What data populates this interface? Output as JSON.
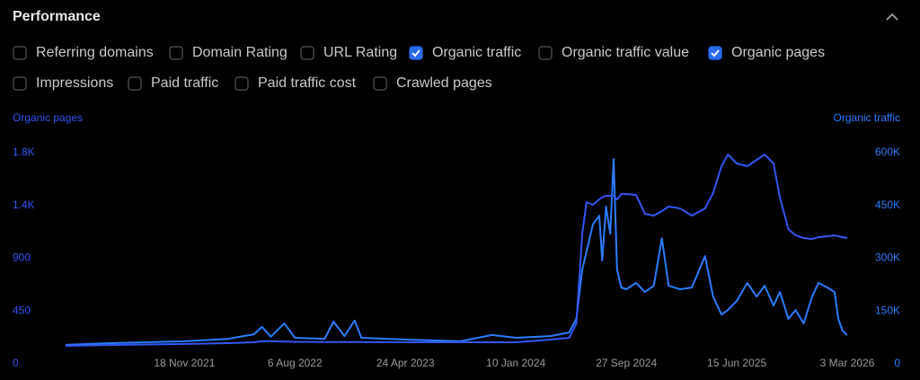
{
  "header": {
    "title": "Performance"
  },
  "filters": [
    {
      "label": "Referring domains",
      "checked": false
    },
    {
      "label": "Domain Rating",
      "checked": false
    },
    {
      "label": "URL Rating",
      "checked": false
    },
    {
      "label": "Organic traffic",
      "checked": true
    },
    {
      "label": "Organic traffic value",
      "checked": false
    },
    {
      "label": "Organic pages",
      "checked": true
    },
    {
      "label": "Impressions",
      "checked": false
    },
    {
      "label": "Paid traffic",
      "checked": false
    },
    {
      "label": "Paid traffic cost",
      "checked": false
    },
    {
      "label": "Crawled pages",
      "checked": false
    }
  ],
  "chart_data": {
    "type": "line",
    "ylabel": "Organic pages",
    "y2label": "Organic traffic",
    "x": [
      "2021-02-10",
      "2021-06-01",
      "2021-11-18",
      "2022-03-01",
      "2022-05-01",
      "2022-05-20",
      "2022-06-10",
      "2022-07-12",
      "2022-08-06",
      "2022-10-15",
      "2022-11-05",
      "2022-12-01",
      "2022-12-25",
      "2023-01-10",
      "2023-04-24",
      "2023-09-01",
      "2023-11-15",
      "2024-01-10",
      "2024-04-01",
      "2024-05-15",
      "2024-06-01",
      "2024-06-15",
      "2024-06-25",
      "2024-07-10",
      "2024-07-25",
      "2024-08-01",
      "2024-08-10",
      "2024-08-20",
      "2024-08-28",
      "2024-09-05",
      "2024-09-15",
      "2024-09-27",
      "2024-10-20",
      "2024-11-10",
      "2024-12-01",
      "2024-12-20",
      "2025-01-05",
      "2025-02-01",
      "2025-03-01",
      "2025-04-01",
      "2025-04-20",
      "2025-05-10",
      "2025-05-25",
      "2025-06-15",
      "2025-07-10",
      "2025-08-01",
      "2025-08-20",
      "2025-09-10",
      "2025-09-25",
      "2025-10-15",
      "2025-11-01",
      "2025-11-20",
      "2025-12-10",
      "2025-12-25",
      "2026-01-15",
      "2026-02-01",
      "2026-02-10",
      "2026-02-20",
      "2026-03-03"
    ],
    "series": [
      {
        "name": "Organic traffic",
        "color": "#2b7cff",
        "axis": "y2",
        "values": [
          54000,
          59000,
          64000,
          71000,
          84000,
          105000,
          77000,
          115000,
          74000,
          71000,
          120000,
          79000,
          123000,
          74000,
          69000,
          64000,
          82000,
          74000,
          79000,
          89000,
          128000,
          268000,
          319000,
          396000,
          421000,
          294000,
          447000,
          370000,
          582000,
          268000,
          217000,
          212000,
          230000,
          204000,
          222000,
          357000,
          222000,
          212000,
          217000,
          306000,
          191000,
          140000,
          153000,
          179000,
          230000,
          191000,
          222000,
          166000,
          204000,
          128000,
          153000,
          115000,
          191000,
          230000,
          217000,
          204000,
          128000,
          94000,
          82000
        ]
      },
      {
        "name": "Organic pages",
        "color": "#3355f2",
        "values": [
          153,
          161,
          169,
          176,
          184,
          192,
          192,
          190,
          188,
          186,
          186,
          186,
          186,
          186,
          184,
          184,
          184,
          184,
          207,
          222,
          345,
          1110,
          1379,
          1356,
          1402,
          1420,
          1432,
          1432,
          1432,
          1402,
          1448,
          1448,
          1440,
          1279,
          1264,
          1302,
          1341,
          1325,
          1264,
          1325,
          1456,
          1685,
          1785,
          1708,
          1685,
          1739,
          1785,
          1708,
          1417,
          1149,
          1095,
          1072,
          1064,
          1080,
          1088,
          1095,
          1088,
          1080,
          1072
        ]
      }
    ],
    "xlim": [
      "2021-02-10",
      "2026-03-03"
    ],
    "xticks": [
      {
        "value": "2021-11-18",
        "label": "18 Nov 2021"
      },
      {
        "value": "2022-08-06",
        "label": "6 Aug 2022"
      },
      {
        "value": "2023-04-24",
        "label": "24 Apr 2023"
      },
      {
        "value": "2024-01-10",
        "label": "10 Jan 2024"
      },
      {
        "value": "2024-09-27",
        "label": "27 Sep 2024"
      },
      {
        "value": "2025-06-15",
        "label": "15 Jun 2025"
      },
      {
        "value": "2026-03-03",
        "label": "3 Mar 2026"
      }
    ],
    "ylim": [
      0,
      1800
    ],
    "yticks": [
      {
        "value": 1800,
        "label": "1.8K"
      },
      {
        "value": 1350,
        "label": "1.4K"
      },
      900,
      450,
      0
    ],
    "y2lim": [
      0,
      600000
    ],
    "y2ticks": [
      {
        "value": 600000,
        "label": "600K"
      },
      {
        "value": 450000,
        "label": "450K"
      },
      {
        "value": 300000,
        "label": "300K"
      },
      {
        "value": 150000,
        "label": "150K"
      },
      0
    ],
    "grid": false
  }
}
